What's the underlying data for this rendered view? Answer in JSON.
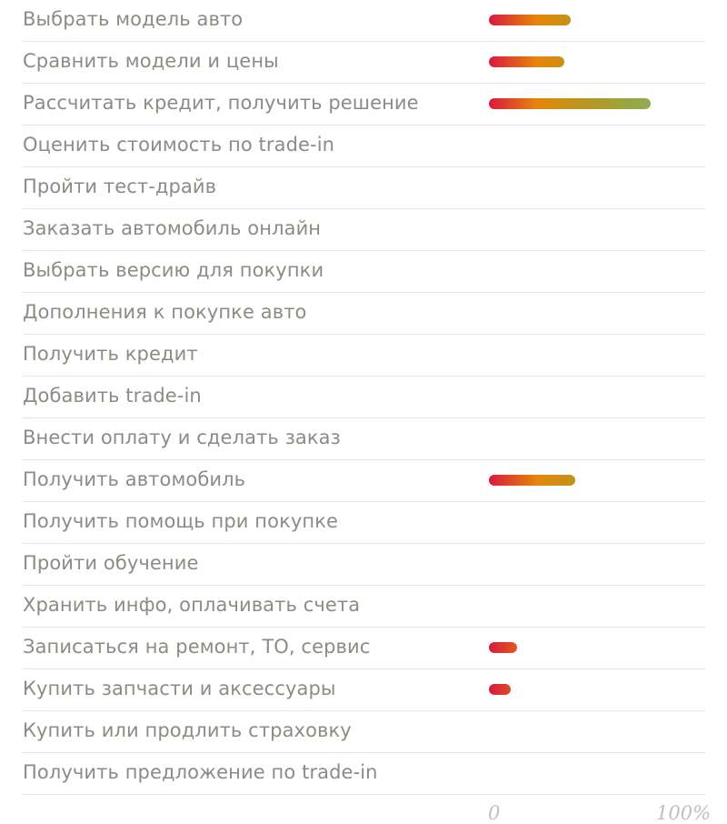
{
  "chart_data": {
    "type": "bar",
    "orientation": "horizontal",
    "categories": [
      "Выбрать модель авто",
      "Сравнить модели и цены",
      "Рассчитать кредит, получить решение",
      "Оценить стоимость по trade-in",
      "Пройти тест-драйв",
      "Заказать автомобиль онлайн",
      "Выбрать версию для покупки",
      "Дополнения к покупке авто",
      "Получить кредит",
      "Добавить trade-in",
      "Внести оплату и сделать заказ",
      "Получить автомобиль",
      "Получить помощь при покупке",
      "Пройти обучение",
      "Хранить инфо, оплачивать счета",
      "Записаться на ремонт, ТО, сервис",
      "Купить запчасти и аксессуары",
      "Купить или продлить страховку",
      "Получить предложение по trade-in"
    ],
    "values": [
      38,
      35,
      75,
      0,
      0,
      0,
      0,
      0,
      0,
      0,
      0,
      40,
      0,
      0,
      0,
      13,
      10,
      0,
      0
    ],
    "xlim": [
      0,
      100
    ],
    "tick_labels": [
      "0",
      "100%"
    ],
    "colors": {
      "gradient_start": "#d7193f",
      "gradient_mid": "#e6850a",
      "gradient_end": "#6dbf7e",
      "label": "#8e8a84",
      "tick": "#c2bebb",
      "divider": "#e6e6e6"
    }
  }
}
